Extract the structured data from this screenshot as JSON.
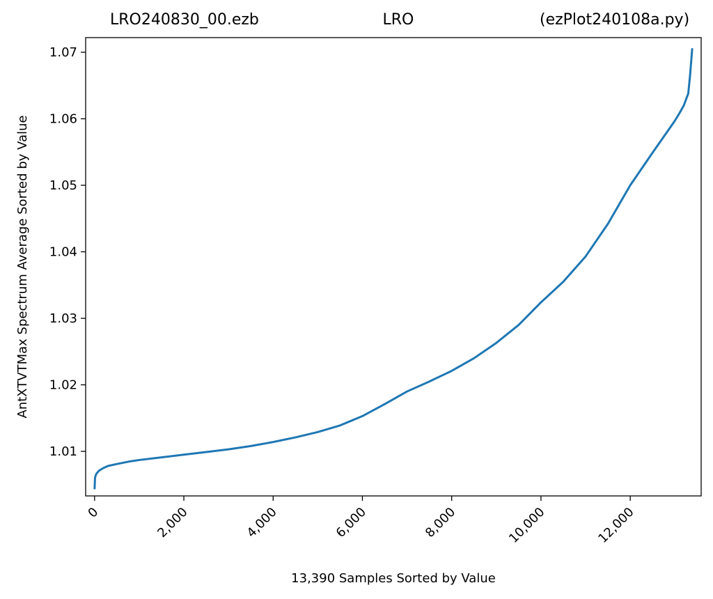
{
  "title": {
    "left": "LRO240830_00.ezb",
    "center": "LRO",
    "right": "(ezPlot240108a.py)"
  },
  "chart_data": {
    "type": "line",
    "xlabel": "13,390 Samples Sorted by Value",
    "ylabel": "AntXTVTMax Spectrum Average Sorted by Value",
    "xlim": [
      -200,
      13589
    ],
    "ylim": [
      1.0033,
      1.0722
    ],
    "grid": false,
    "legend": "none",
    "line_color": "#1f77b4",
    "x_ticks": [
      {
        "value": 0,
        "label": "0"
      },
      {
        "value": 2000,
        "label": "2,000"
      },
      {
        "value": 4000,
        "label": "4,000"
      },
      {
        "value": 6000,
        "label": "6,000"
      },
      {
        "value": 8000,
        "label": "8,000"
      },
      {
        "value": 10000,
        "label": "10,000"
      },
      {
        "value": 12000,
        "label": "12,000"
      }
    ],
    "y_ticks": [
      {
        "value": 1.01,
        "label": "1.01"
      },
      {
        "value": 1.02,
        "label": "1.02"
      },
      {
        "value": 1.03,
        "label": "1.03"
      },
      {
        "value": 1.04,
        "label": "1.04"
      },
      {
        "value": 1.05,
        "label": "1.05"
      },
      {
        "value": 1.06,
        "label": "1.06"
      },
      {
        "value": 1.07,
        "label": "1.07"
      }
    ],
    "series": [
      {
        "x": [
          0,
          10,
          30,
          60,
          100,
          200,
          300,
          500,
          800,
          1000,
          1500,
          2000,
          2500,
          3000,
          3500,
          4000,
          4500,
          5000,
          5500,
          6000,
          6500,
          7000,
          7500,
          8000,
          8500,
          9000,
          9500,
          10000,
          10500,
          11000,
          11500,
          12000,
          12500,
          13000,
          13100,
          13200,
          13300,
          13340,
          13370,
          13389
        ],
        "y": [
          1.0043,
          1.006,
          1.0065,
          1.0068,
          1.0071,
          1.0075,
          1.0078,
          1.0081,
          1.0085,
          1.0087,
          1.0091,
          1.0095,
          1.0099,
          1.0103,
          1.0108,
          1.0114,
          1.0121,
          1.0129,
          1.0139,
          1.0153,
          1.0171,
          1.019,
          1.0205,
          1.0221,
          1.024,
          1.0263,
          1.029,
          1.0324,
          1.0355,
          1.0393,
          1.0442,
          1.05,
          1.0549,
          1.0597,
          1.0608,
          1.062,
          1.0638,
          1.0665,
          1.069,
          1.0706
        ]
      }
    ]
  }
}
